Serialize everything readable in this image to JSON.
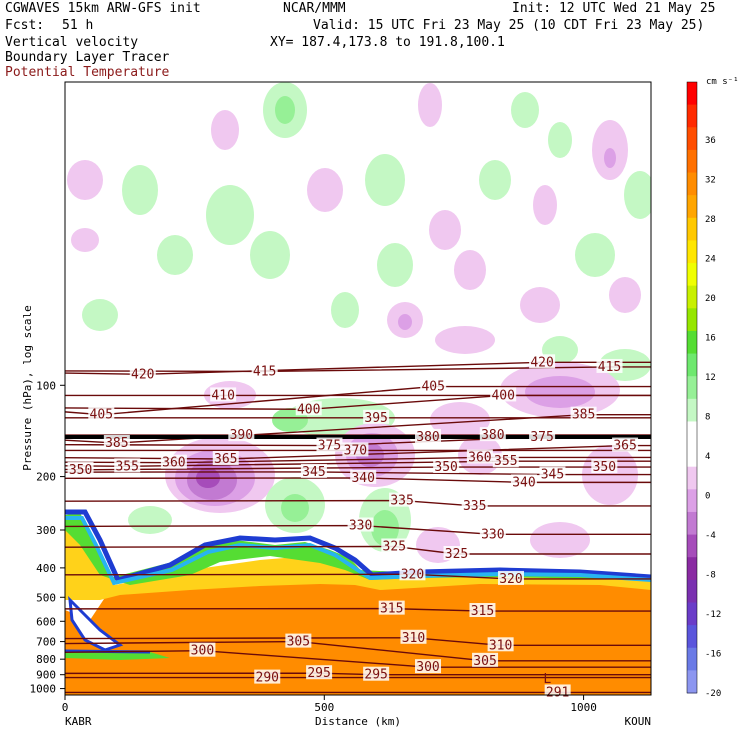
{
  "header": {
    "model_line": "CGWAVES 15km ARW-GFS init",
    "org": "NCAR/MMM",
    "init": "Init: 12 UTC Wed 21 May 25",
    "fcst_label": "Fcst:",
    "fcst_value": "51 h",
    "valid": "Valid: 15 UTC Fri 23 May 25 (10 CDT Fri 23 May 25)",
    "field1": "Vertical velocity",
    "field2": "Boundary Layer Tracer",
    "field3": "Potential Temperature",
    "xy": "XY= 187.4,173.8 to 191.8,100.1"
  },
  "chart_data": {
    "type": "heatmap",
    "title": "",
    "xlabel": "Distance (km)",
    "ylabel": "Pressure (hPa), log scale",
    "x_ticks": [
      0,
      500,
      1000
    ],
    "xlim": [
      0,
      1130
    ],
    "y_ticks": [
      100,
      200,
      300,
      400,
      500,
      600,
      700,
      800,
      900,
      1000
    ],
    "ylim": [
      1050,
      10
    ],
    "y_log": true,
    "x_endpoints": [
      "KABR",
      "KOUN"
    ],
    "colorbar": {
      "unit": "cm s⁻¹",
      "labels": [
        36,
        32,
        28,
        24,
        20,
        16,
        12,
        8,
        4,
        0,
        -4,
        -8,
        -12,
        -16,
        -20
      ],
      "colors": [
        "#ff0000",
        "#ff2a00",
        "#ff4d00",
        "#ff7000",
        "#ff8c00",
        "#ffa500",
        "#ffc800",
        "#ffe600",
        "#f0ff00",
        "#c8f000",
        "#96e600",
        "#55dd33",
        "#6ee86e",
        "#96f096",
        "#c4f8c4",
        "#ffffff",
        "#ffffff",
        "#f0c8f0",
        "#dca0e6",
        "#c27ad2",
        "#a64cba",
        "#8a2aa2",
        "#7a30b0",
        "#6a3cc8",
        "#5a55dc",
        "#6a7ae6",
        "#8c96f0"
      ]
    },
    "theta_labels": [
      {
        "x": 150,
        "p": 92,
        "v": 420
      },
      {
        "x": 920,
        "p": 84,
        "v": 420
      },
      {
        "x": 1050,
        "p": 87,
        "v": 415
      },
      {
        "x": 385,
        "p": 90,
        "v": 415
      },
      {
        "x": 70,
        "p": 125,
        "v": 405
      },
      {
        "x": 710,
        "p": 101,
        "v": 405
      },
      {
        "x": 305,
        "p": 108,
        "v": 410
      },
      {
        "x": 470,
        "p": 120,
        "v": 400
      },
      {
        "x": 845,
        "p": 108,
        "v": 400
      },
      {
        "x": 600,
        "p": 128,
        "v": 395
      },
      {
        "x": 340,
        "p": 146,
        "v": 390
      },
      {
        "x": 100,
        "p": 155,
        "v": 385
      },
      {
        "x": 1000,
        "p": 125,
        "v": 385
      },
      {
        "x": 700,
        "p": 148,
        "v": 380
      },
      {
        "x": 825,
        "p": 146,
        "v": 380
      },
      {
        "x": 920,
        "p": 148,
        "v": 375
      },
      {
        "x": 510,
        "p": 158,
        "v": 375
      },
      {
        "x": 560,
        "p": 164,
        "v": 370
      },
      {
        "x": 310,
        "p": 175,
        "v": 365
      },
      {
        "x": 1080,
        "p": 158,
        "v": 365
      },
      {
        "x": 210,
        "p": 180,
        "v": 360
      },
      {
        "x": 800,
        "p": 173,
        "v": 360
      },
      {
        "x": 120,
        "p": 185,
        "v": 355
      },
      {
        "x": 850,
        "p": 178,
        "v": 355
      },
      {
        "x": 30,
        "p": 190,
        "v": 350
      },
      {
        "x": 735,
        "p": 186,
        "v": 350
      },
      {
        "x": 1040,
        "p": 186,
        "v": 350
      },
      {
        "x": 480,
        "p": 193,
        "v": 345
      },
      {
        "x": 940,
        "p": 197,
        "v": 345
      },
      {
        "x": 575,
        "p": 202,
        "v": 340
      },
      {
        "x": 885,
        "p": 209,
        "v": 340
      },
      {
        "x": 650,
        "p": 240,
        "v": 335
      },
      {
        "x": 790,
        "p": 250,
        "v": 335
      },
      {
        "x": 570,
        "p": 290,
        "v": 330
      },
      {
        "x": 825,
        "p": 310,
        "v": 330
      },
      {
        "x": 635,
        "p": 340,
        "v": 325
      },
      {
        "x": 755,
        "p": 360,
        "v": 325
      },
      {
        "x": 670,
        "p": 420,
        "v": 320
      },
      {
        "x": 860,
        "p": 435,
        "v": 320
      },
      {
        "x": 630,
        "p": 545,
        "v": 315
      },
      {
        "x": 805,
        "p": 555,
        "v": 315
      },
      {
        "x": 672,
        "p": 680,
        "v": 310
      },
      {
        "x": 840,
        "p": 720,
        "v": 310
      },
      {
        "x": 450,
        "p": 700,
        "v": 305
      },
      {
        "x": 810,
        "p": 810,
        "v": 305
      },
      {
        "x": 265,
        "p": 750,
        "v": 300
      },
      {
        "x": 700,
        "p": 850,
        "v": 300
      },
      {
        "x": 490,
        "p": 890,
        "v": 295
      },
      {
        "x": 600,
        "p": 900,
        "v": 295
      },
      {
        "x": 390,
        "p": 920,
        "v": 290
      },
      {
        "x": 950,
        "p": 1030,
        "v": 291
      }
    ],
    "low_marker": {
      "x": 930,
      "p": 930,
      "text": "L"
    }
  }
}
